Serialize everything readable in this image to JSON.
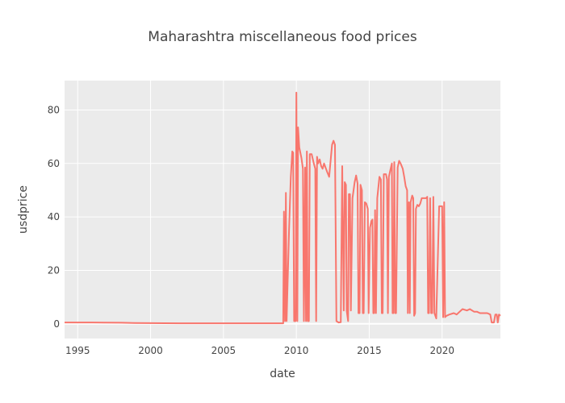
{
  "chart_data": {
    "type": "line",
    "title": "Maharashtra miscellaneous food prices",
    "xlabel": "date",
    "ylabel": "usdprice",
    "x_ticks": [
      "1995",
      "2000",
      "2005",
      "2010",
      "2015",
      "2020"
    ],
    "y_ticks": [
      "0",
      "20",
      "40",
      "60",
      "80"
    ],
    "xlim": [
      1994.1,
      2024.0
    ],
    "ylim": [
      -5.5,
      91
    ],
    "grid": true,
    "legend": "none",
    "colors": {
      "line": "#f8766d",
      "plot_bg": "#ebebeb",
      "grid": "#ffffff"
    },
    "series": [
      {
        "points": [
          [
            1994.1,
            0.5
          ],
          [
            1996.0,
            0.5
          ],
          [
            1998.0,
            0.4
          ],
          [
            1998.9,
            0.3
          ],
          [
            2002.0,
            0.2
          ],
          [
            2006.0,
            0.2
          ],
          [
            2009.1,
            0.2
          ],
          [
            2009.15,
            42
          ],
          [
            2009.22,
            1
          ],
          [
            2009.28,
            49
          ],
          [
            2009.33,
            1
          ],
          [
            2009.5,
            35
          ],
          [
            2009.62,
            55
          ],
          [
            2009.72,
            64.5
          ],
          [
            2009.78,
            64
          ],
          [
            2009.85,
            1
          ],
          [
            2009.95,
            1
          ],
          [
            2010.0,
            86.5
          ],
          [
            2010.07,
            1
          ],
          [
            2010.12,
            73.5
          ],
          [
            2010.2,
            66
          ],
          [
            2010.35,
            62
          ],
          [
            2010.45,
            58
          ],
          [
            2010.52,
            1
          ],
          [
            2010.6,
            58.5
          ],
          [
            2010.66,
            1
          ],
          [
            2010.72,
            64.5
          ],
          [
            2010.78,
            1
          ],
          [
            2010.86,
            1
          ],
          [
            2010.92,
            63.5
          ],
          [
            2011.05,
            63.5
          ],
          [
            2011.2,
            60
          ],
          [
            2011.3,
            58
          ],
          [
            2011.36,
            1
          ],
          [
            2011.42,
            62.5
          ],
          [
            2011.5,
            60
          ],
          [
            2011.6,
            61.5
          ],
          [
            2011.7,
            59
          ],
          [
            2011.8,
            58
          ],
          [
            2011.9,
            60
          ],
          [
            2012.0,
            58.5
          ],
          [
            2012.1,
            57
          ],
          [
            2012.25,
            55
          ],
          [
            2012.35,
            61
          ],
          [
            2012.45,
            67
          ],
          [
            2012.55,
            68.5
          ],
          [
            2012.65,
            67
          ],
          [
            2012.75,
            1
          ],
          [
            2012.9,
            0.5
          ],
          [
            2013.05,
            0.6
          ],
          [
            2013.15,
            59
          ],
          [
            2013.25,
            5
          ],
          [
            2013.32,
            53
          ],
          [
            2013.4,
            52
          ],
          [
            2013.45,
            5
          ],
          [
            2013.55,
            1
          ],
          [
            2013.6,
            48.5
          ],
          [
            2013.68,
            48.5
          ],
          [
            2013.74,
            5
          ],
          [
            2013.85,
            47
          ],
          [
            2014.0,
            53
          ],
          [
            2014.1,
            55.5
          ],
          [
            2014.2,
            52.5
          ],
          [
            2014.26,
            4
          ],
          [
            2014.34,
            4
          ],
          [
            2014.4,
            52
          ],
          [
            2014.5,
            50
          ],
          [
            2014.56,
            4
          ],
          [
            2014.62,
            4
          ],
          [
            2014.7,
            45.5
          ],
          [
            2014.8,
            45
          ],
          [
            2014.9,
            43
          ],
          [
            2014.96,
            4
          ],
          [
            2015.05,
            36
          ],
          [
            2015.15,
            38.5
          ],
          [
            2015.22,
            39
          ],
          [
            2015.28,
            4
          ],
          [
            2015.34,
            4
          ],
          [
            2015.4,
            42.5
          ],
          [
            2015.46,
            4
          ],
          [
            2015.55,
            47
          ],
          [
            2015.7,
            55
          ],
          [
            2015.8,
            54
          ],
          [
            2015.86,
            4
          ],
          [
            2015.92,
            4
          ],
          [
            2016.0,
            56
          ],
          [
            2016.15,
            56
          ],
          [
            2016.22,
            54
          ],
          [
            2016.28,
            4
          ],
          [
            2016.35,
            55
          ],
          [
            2016.45,
            57.5
          ],
          [
            2016.55,
            60
          ],
          [
            2016.6,
            4
          ],
          [
            2016.66,
            4
          ],
          [
            2016.72,
            60.5
          ],
          [
            2016.78,
            4
          ],
          [
            2016.84,
            4
          ],
          [
            2016.95,
            58.5
          ],
          [
            2017.05,
            61
          ],
          [
            2017.15,
            60
          ],
          [
            2017.3,
            58
          ],
          [
            2017.4,
            55
          ],
          [
            2017.5,
            51.5
          ],
          [
            2017.6,
            50
          ],
          [
            2017.65,
            4
          ],
          [
            2017.72,
            45.5
          ],
          [
            2017.78,
            4
          ],
          [
            2017.84,
            45.5
          ],
          [
            2017.95,
            48
          ],
          [
            2018.02,
            47
          ],
          [
            2018.08,
            3
          ],
          [
            2018.15,
            4
          ],
          [
            2018.2,
            43
          ],
          [
            2018.3,
            44.5
          ],
          [
            2018.4,
            44
          ],
          [
            2018.5,
            45
          ],
          [
            2018.6,
            47
          ],
          [
            2018.9,
            47
          ],
          [
            2018.98,
            47.5
          ],
          [
            2019.04,
            4
          ],
          [
            2019.1,
            4
          ],
          [
            2019.18,
            47
          ],
          [
            2019.25,
            4
          ],
          [
            2019.32,
            4
          ],
          [
            2019.4,
            47.5
          ],
          [
            2019.47,
            4
          ],
          [
            2019.6,
            2
          ],
          [
            2019.8,
            44
          ],
          [
            2020.0,
            44
          ],
          [
            2020.07,
            2.5
          ],
          [
            2020.14,
            45.5
          ],
          [
            2020.2,
            2.5
          ],
          [
            2020.3,
            3
          ],
          [
            2020.5,
            3.5
          ],
          [
            2020.8,
            4
          ],
          [
            2021.0,
            3.5
          ],
          [
            2021.2,
            4.5
          ],
          [
            2021.4,
            5.5
          ],
          [
            2021.7,
            5
          ],
          [
            2021.9,
            5.5
          ],
          [
            2022.2,
            4.5
          ],
          [
            2022.4,
            4.5
          ],
          [
            2022.6,
            4
          ],
          [
            2022.9,
            4
          ],
          [
            2023.1,
            4
          ],
          [
            2023.3,
            3.5
          ],
          [
            2023.4,
            0.5
          ],
          [
            2023.55,
            0.5
          ],
          [
            2023.65,
            3.5
          ],
          [
            2023.75,
            3.5
          ],
          [
            2023.82,
            0.5
          ],
          [
            2023.9,
            3.5
          ],
          [
            2024.0,
            3
          ]
        ]
      }
    ]
  }
}
